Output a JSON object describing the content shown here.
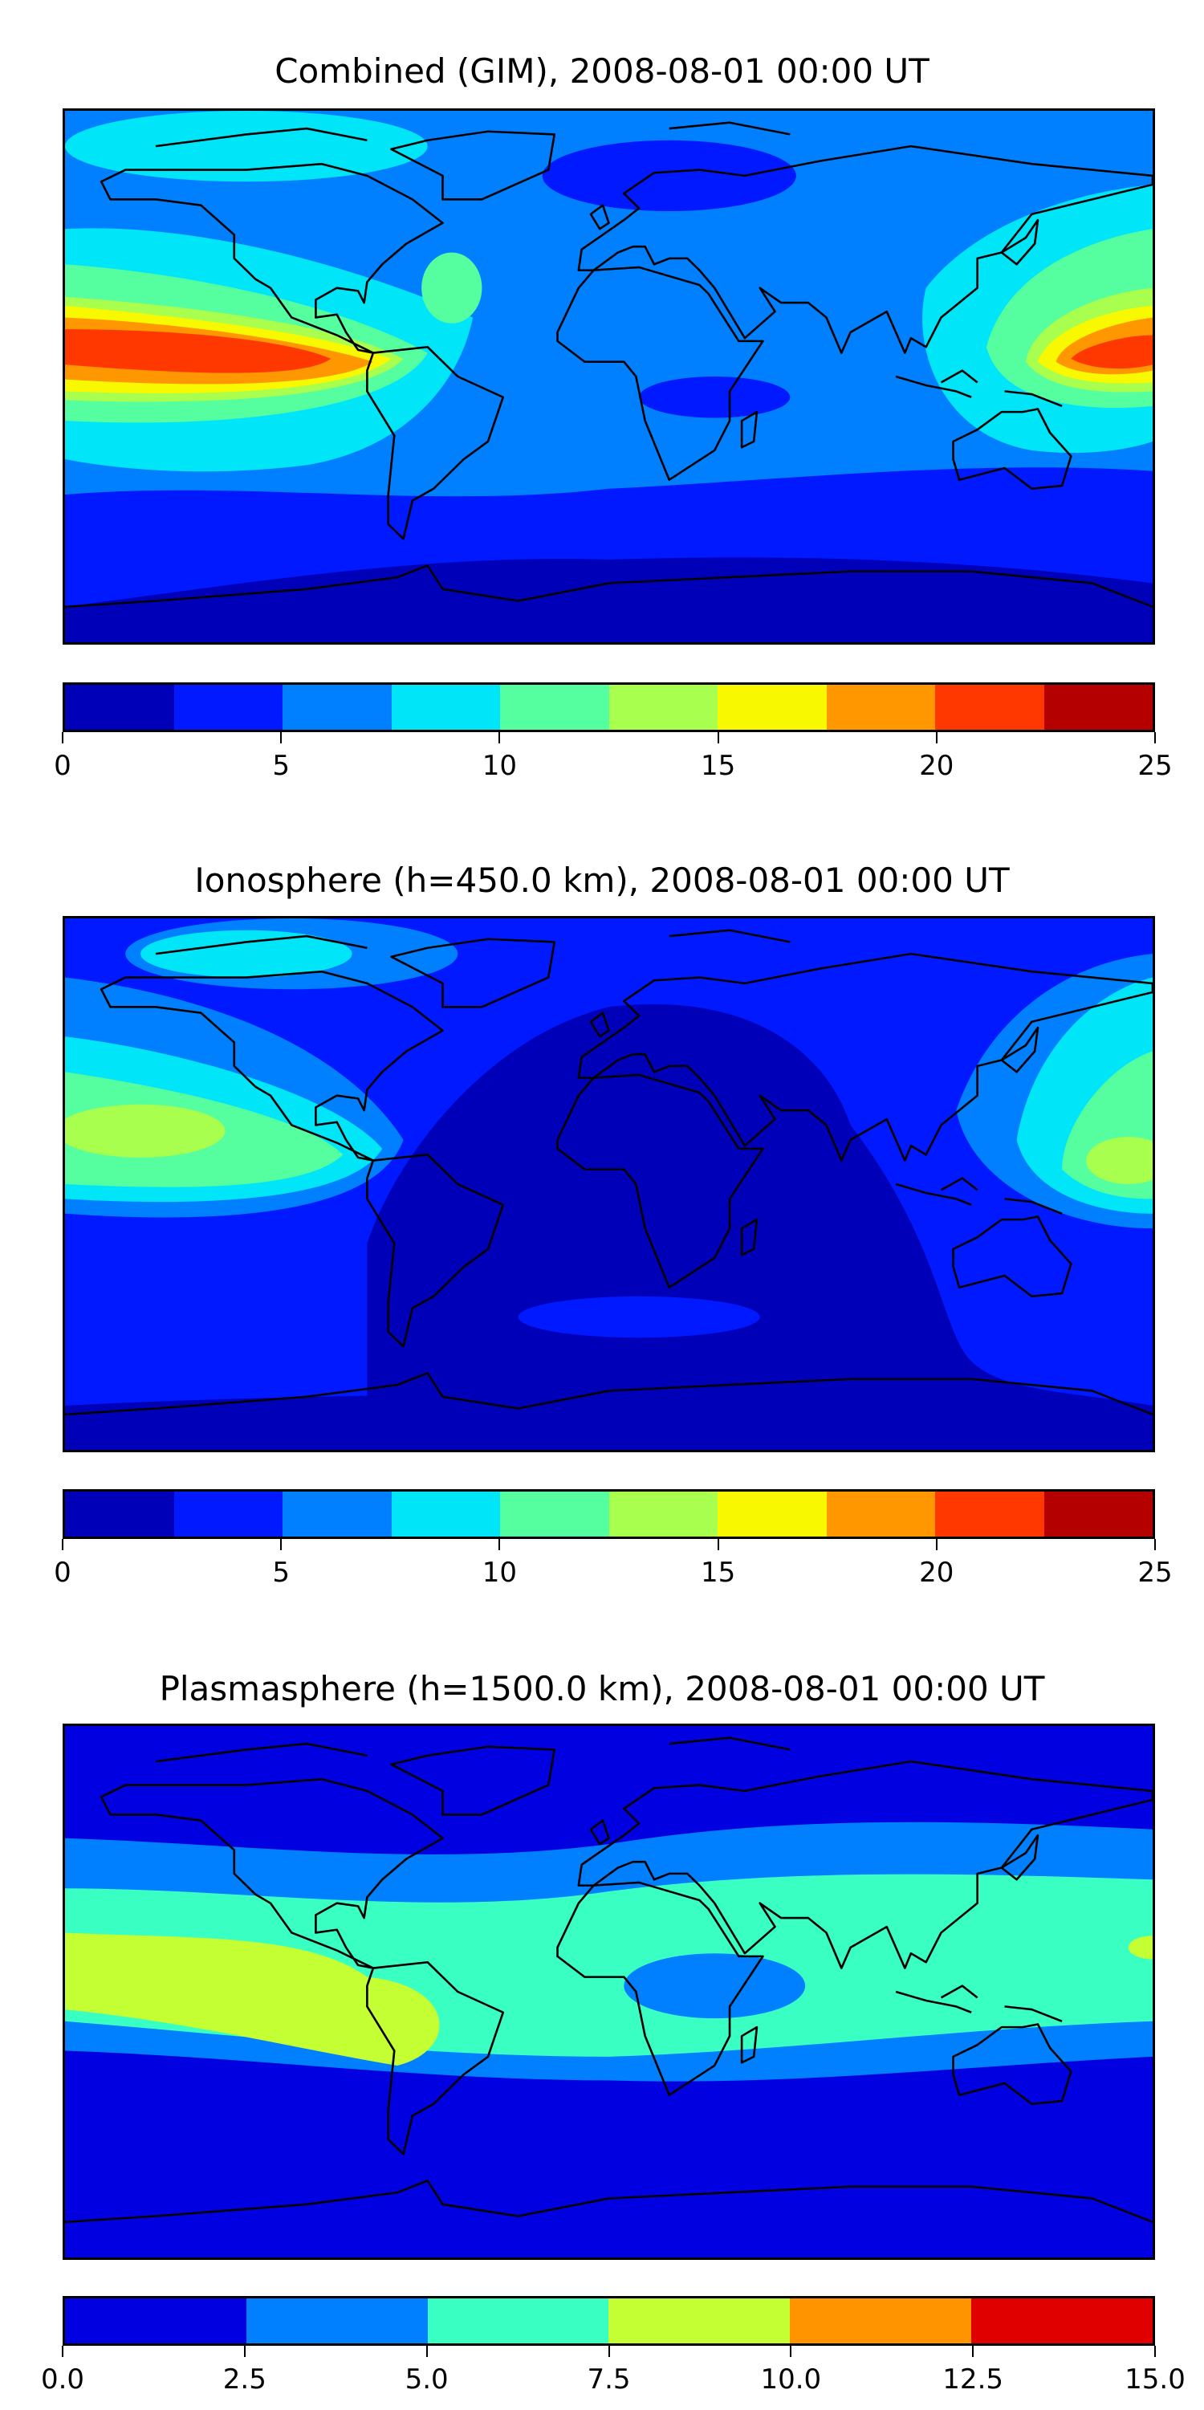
{
  "chart_data": [
    {
      "type": "heatmap",
      "title": "Combined (GIM), 2008-08-01 00:00 UT",
      "levels": [
        0,
        2.5,
        5,
        7.5,
        10,
        12.5,
        15,
        17.5,
        20,
        22.5,
        25
      ],
      "colors": [
        "#0000b8",
        "#0019ff",
        "#0080ff",
        "#00e5f8",
        "#55ff9f",
        "#a8ff4d",
        "#f8f800",
        "#ff9800",
        "#ff3800",
        "#b50000"
      ],
      "ticks": [
        "0",
        "5",
        "10",
        "15",
        "20",
        "25"
      ],
      "tick_values": [
        0,
        5,
        10,
        15,
        20,
        25
      ],
      "vmin": 0,
      "vmax": 25,
      "features": "maximum ~20-22.5 over eastern Pacific and western Pacific/Indonesia; minimum 0-2.5 near Antarctica"
    },
    {
      "type": "heatmap",
      "title": "Ionosphere  (h=450.0 km), 2008-08-01 00:00 UT",
      "levels": [
        0,
        2.5,
        5,
        7.5,
        10,
        12.5,
        15,
        17.5,
        20,
        22.5,
        25
      ],
      "colors": [
        "#0000b8",
        "#0019ff",
        "#0080ff",
        "#00e5f8",
        "#55ff9f",
        "#a8ff4d",
        "#f8f800",
        "#ff9800",
        "#ff3800",
        "#b50000"
      ],
      "ticks": [
        "0",
        "5",
        "10",
        "15",
        "20",
        "25"
      ],
      "tick_values": [
        0,
        5,
        10,
        15,
        20,
        25
      ],
      "vmin": 0,
      "vmax": 25,
      "features": "maximum ~12.5-15 over central Pacific; 0-2.5 over Atlantic, Africa and Indian Ocean"
    },
    {
      "type": "heatmap",
      "title": "Plasmasphere (h=1500.0 km), 2008-08-01 00:00 UT",
      "levels": [
        0,
        2.5,
        5,
        7.5,
        10,
        12.5,
        15
      ],
      "colors": [
        "#0000e0",
        "#0080ff",
        "#3affc3",
        "#c3ff33",
        "#ff9400",
        "#e00000"
      ],
      "ticks": [
        "0.0",
        "2.5",
        "5.0",
        "7.5",
        "10.0",
        "12.5",
        "15.0"
      ],
      "tick_values": [
        0,
        2.5,
        5,
        7.5,
        10,
        12.5,
        15
      ],
      "vmin": 0,
      "vmax": 15,
      "features": "maximum ~7.5-10 over eastern Pacific and South America; 0-2.5 at high latitudes"
    }
  ]
}
